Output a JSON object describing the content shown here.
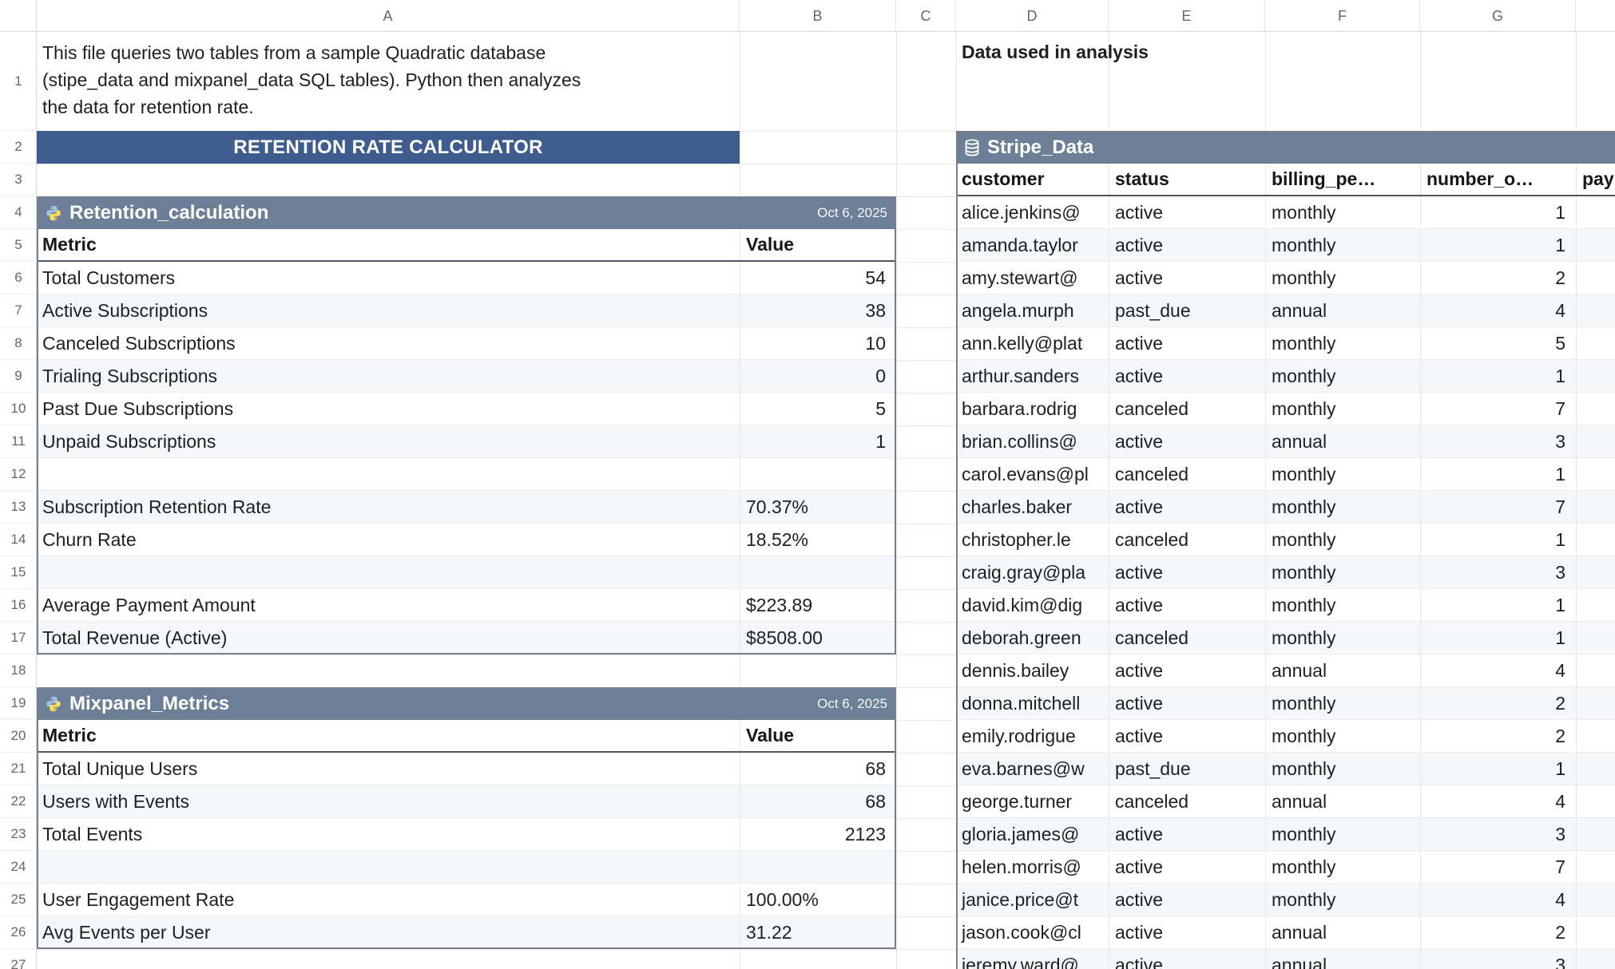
{
  "colors": {
    "banner": "#3e5c8e",
    "table_header": "#6d7f96"
  },
  "sheet": {
    "columns": [
      "A",
      "B",
      "C",
      "D",
      "E",
      "F",
      "G",
      ""
    ],
    "row_numbers": [
      "1",
      "2",
      "3",
      "4",
      "5",
      "6",
      "7",
      "8",
      "9",
      "10",
      "11",
      "12",
      "13",
      "14",
      "15",
      "16",
      "17",
      "18",
      "19",
      "20",
      "21",
      "22",
      "23",
      "24",
      "25",
      "26",
      "27"
    ],
    "note": {
      "lines": [
        "This file queries two tables from a sample Quadratic database",
        "(stipe_data and mixpanel_data SQL tables). Python then analyzes",
        "the data for retention rate."
      ]
    },
    "banner": "RETENTION RATE CALCULATOR",
    "data_used_label": "Data used in analysis"
  },
  "tables": {
    "retention": {
      "name": "Retention_calculation",
      "icon": "python-icon",
      "date": "Oct 6, 2025",
      "headers": [
        "Metric",
        "Value"
      ],
      "rows": [
        [
          "Total Customers",
          "54"
        ],
        [
          "Active Subscriptions",
          "38"
        ],
        [
          "Canceled Subscriptions",
          "10"
        ],
        [
          "Trialing Subscriptions",
          "0"
        ],
        [
          "Past Due Subscriptions",
          "5"
        ],
        [
          "Unpaid Subscriptions",
          "1"
        ],
        [
          "",
          ""
        ],
        [
          "Subscription Retention Rate",
          "70.37%"
        ],
        [
          "Churn Rate",
          "18.52%"
        ],
        [
          "",
          ""
        ],
        [
          "Average Payment Amount",
          "$223.89"
        ],
        [
          "Total Revenue (Active)",
          "$8508.00"
        ]
      ]
    },
    "mixpanel": {
      "name": "Mixpanel_Metrics",
      "icon": "python-icon",
      "date": "Oct 6, 2025",
      "headers": [
        "Metric",
        "Value"
      ],
      "rows": [
        [
          "Total Unique Users",
          "68"
        ],
        [
          "Users with Events",
          "68"
        ],
        [
          "Total Events",
          "2123"
        ],
        [
          "",
          ""
        ],
        [
          "User Engagement Rate",
          "100.00%"
        ],
        [
          "Avg Events per User",
          "31.22"
        ]
      ]
    },
    "stripe": {
      "name": "Stripe_Data",
      "icon": "database-icon",
      "headers": [
        "customer",
        "status",
        "billing_pe…",
        "number_o…",
        "pay…"
      ],
      "rows": [
        [
          "alice.jenkins@",
          "active",
          "monthly",
          "1"
        ],
        [
          "amanda.taylor",
          "active",
          "monthly",
          "1"
        ],
        [
          "amy.stewart@",
          "active",
          "monthly",
          "2"
        ],
        [
          "angela.murph",
          "past_due",
          "annual",
          "4"
        ],
        [
          "ann.kelly@plat",
          "active",
          "monthly",
          "5"
        ],
        [
          "arthur.sanders",
          "active",
          "monthly",
          "1"
        ],
        [
          "barbara.rodrig",
          "canceled",
          "monthly",
          "7"
        ],
        [
          "brian.collins@",
          "active",
          "annual",
          "3"
        ],
        [
          "carol.evans@pl",
          "canceled",
          "monthly",
          "1"
        ],
        [
          "charles.baker",
          "active",
          "monthly",
          "7"
        ],
        [
          "christopher.le",
          "canceled",
          "monthly",
          "1"
        ],
        [
          "craig.gray@pla",
          "active",
          "monthly",
          "3"
        ],
        [
          "david.kim@dig",
          "active",
          "monthly",
          "1"
        ],
        [
          "deborah.green",
          "canceled",
          "monthly",
          "1"
        ],
        [
          "dennis.bailey",
          "active",
          "annual",
          "4"
        ],
        [
          "donna.mitchell",
          "active",
          "monthly",
          "2"
        ],
        [
          "emily.rodrigue",
          "active",
          "monthly",
          "2"
        ],
        [
          "eva.barnes@w",
          "past_due",
          "monthly",
          "1"
        ],
        [
          "george.turner",
          "canceled",
          "annual",
          "4"
        ],
        [
          "gloria.james@",
          "active",
          "monthly",
          "3"
        ],
        [
          "helen.morris@",
          "active",
          "monthly",
          "7"
        ],
        [
          "janice.price@t",
          "active",
          "monthly",
          "4"
        ],
        [
          "jason.cook@cl",
          "active",
          "annual",
          "2"
        ],
        [
          "jeremy.ward@",
          "active",
          "annual",
          "3"
        ]
      ]
    }
  }
}
